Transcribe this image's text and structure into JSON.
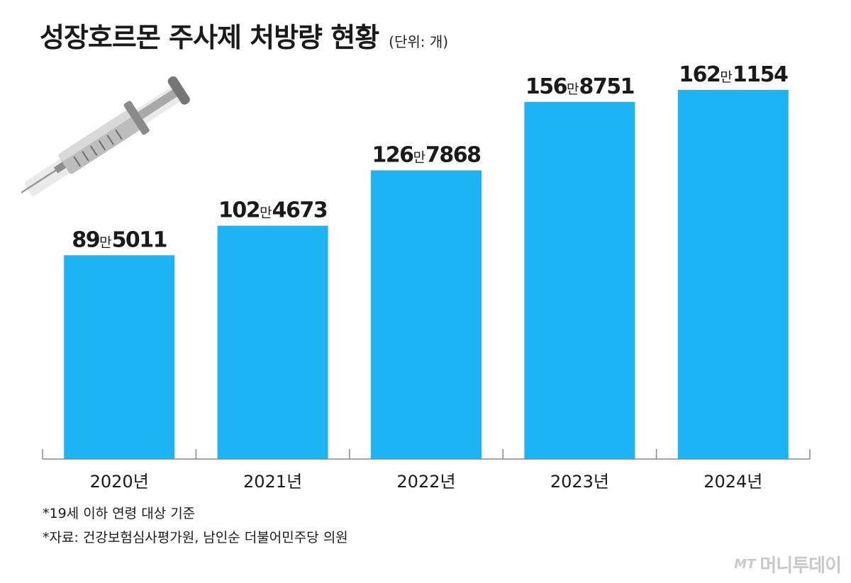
{
  "header": {
    "title": "성장호르몬 주사제 처방량 현황",
    "unit": "(단위: 개)"
  },
  "notes": [
    "*19세 이하 연령 대상 기준",
    "*자료: 건강보험심사평가원, 남인순 더불어민주당 의원"
  ],
  "brand": {
    "mark": "MT",
    "name": "머니투데이"
  },
  "colors": {
    "bar": "#1db4f5",
    "axis": "#888888",
    "text": "#1a1a1a"
  },
  "chart_data": {
    "type": "bar",
    "title": "성장호르몬 주사제 처방량 현황",
    "categories": [
      "2020년",
      "2021년",
      "2022년",
      "2023년",
      "2024년"
    ],
    "values": [
      895011,
      1024673,
      1267868,
      1568751,
      1621154
    ],
    "data_labels": [
      {
        "man": "89",
        "unit": "만",
        "rest": "5011"
      },
      {
        "man": "102",
        "unit": "만",
        "rest": "4673"
      },
      {
        "man": "126",
        "unit": "만",
        "rest": "7868"
      },
      {
        "man": "156",
        "unit": "만",
        "rest": "8751"
      },
      {
        "man": "162",
        "unit": "만",
        "rest": "1154"
      }
    ],
    "ylim": [
      0,
      1680000
    ],
    "grid": false,
    "legend": "none"
  }
}
